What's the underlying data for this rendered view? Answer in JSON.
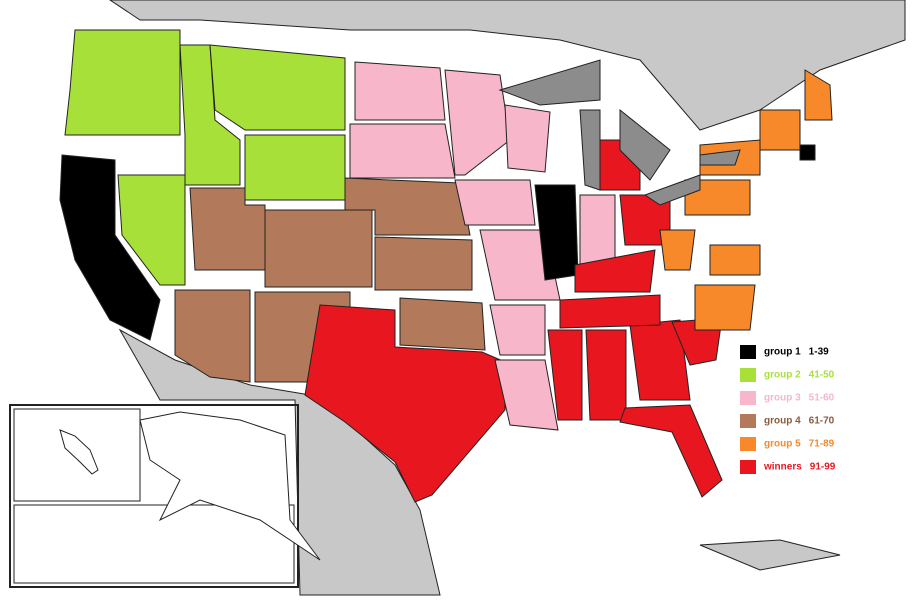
{
  "legend": {
    "items": [
      {
        "label": "group 1",
        "range": "1-39",
        "color": "#000000",
        "label_color": "#000000",
        "range_color": "#000000"
      },
      {
        "label": "group 2",
        "range": "41-50",
        "color": "#a8e03a",
        "label_color": "#a8e03a",
        "range_color": "#a8e03a"
      },
      {
        "label": "group 3",
        "range": "51-60",
        "color": "#f7b6c9",
        "label_color": "#f7b6c9",
        "range_color": "#f7b6c9"
      },
      {
        "label": "group 4",
        "range": "61-70",
        "color": "#b27a5a",
        "label_color": "#8a5a3e",
        "range_color": "#8a5a3e"
      },
      {
        "label": "group 5",
        "range": "71-89",
        "color": "#f7892a",
        "label_color": "#f7892a",
        "range_color": "#f7892a"
      },
      {
        "label": "winners",
        "range": "91-99",
        "color": "#e8171f",
        "label_color": "#e8171f",
        "range_color": "#e8171f"
      }
    ]
  }
}
